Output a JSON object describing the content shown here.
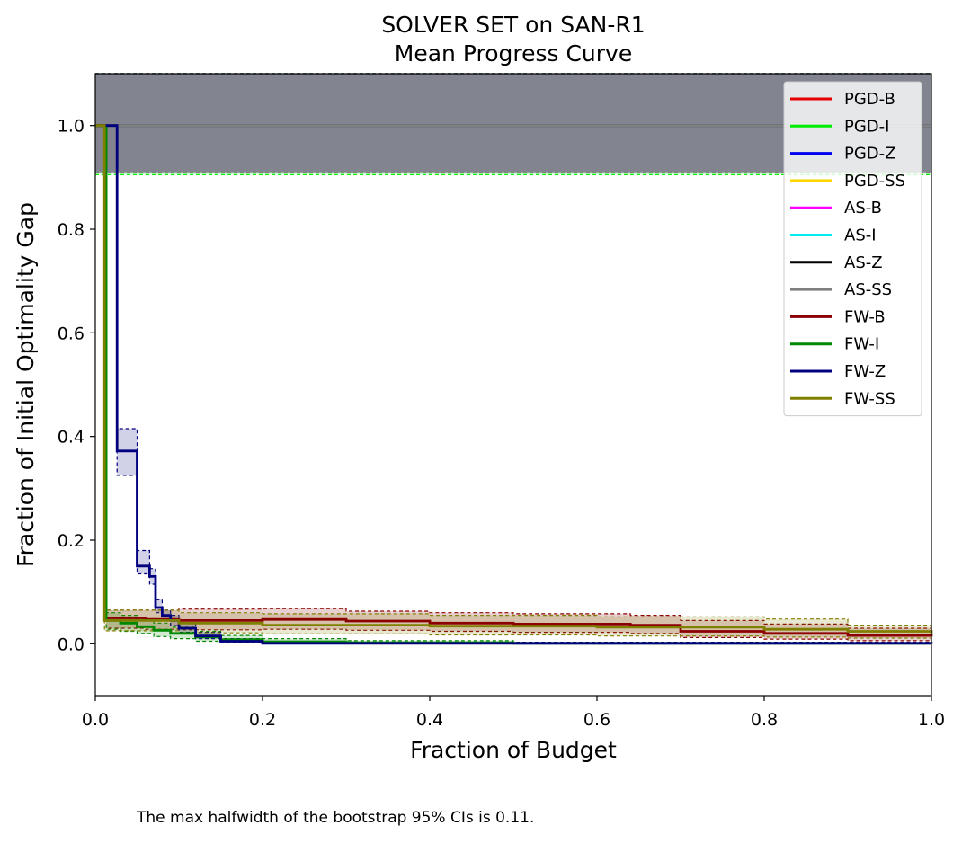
{
  "chart_data": {
    "type": "line",
    "title": "SOLVER SET on SAN-R1",
    "subtitle": "Mean Progress Curve",
    "xlabel": "Fraction of Budget",
    "ylabel": "Fraction of Initial Optimality Gap",
    "xlim": [
      0.0,
      1.0
    ],
    "ylim": [
      -0.1,
      1.1
    ],
    "xticks": [
      0.0,
      0.2,
      0.4,
      0.6,
      0.8,
      1.0
    ],
    "yticks": [
      0.0,
      0.2,
      0.4,
      0.6,
      0.8,
      1.0
    ],
    "xtick_labels": [
      "0.0",
      "0.2",
      "0.4",
      "0.6",
      "0.8",
      "1.0"
    ],
    "ytick_labels": [
      "0.0",
      "0.2",
      "0.4",
      "0.6",
      "0.8",
      "1.0"
    ],
    "grid": false,
    "legend_position": "top-right",
    "series": [
      {
        "name": "PGD-B",
        "color": "#e60000",
        "x": [
          0.0,
          1.0
        ],
        "y": [
          1.0,
          1.0
        ],
        "ci_lower": [
          0.91,
          0.91
        ],
        "ci_upper": [
          1.1,
          1.1
        ]
      },
      {
        "name": "PGD-I",
        "color": "#00ee00",
        "x": [
          0.0,
          1.0
        ],
        "y": [
          1.0,
          1.0
        ],
        "ci_lower": [
          0.905,
          0.905
        ],
        "ci_upper": [
          1.1,
          1.1
        ]
      },
      {
        "name": "PGD-Z",
        "color": "#0000ee",
        "x": [
          0.0,
          1.0
        ],
        "y": [
          1.0,
          1.0
        ],
        "ci_lower": [
          0.91,
          0.91
        ],
        "ci_upper": [
          1.1,
          1.1
        ]
      },
      {
        "name": "PGD-SS",
        "color": "#ffd700",
        "x": [
          0.0,
          1.0
        ],
        "y": [
          1.0,
          1.0
        ],
        "ci_lower": [
          0.91,
          0.91
        ],
        "ci_upper": [
          1.1,
          1.1
        ]
      },
      {
        "name": "AS-B",
        "color": "#ff00ff",
        "x": [
          0.0,
          1.0
        ],
        "y": [
          1.0,
          1.0
        ],
        "ci_lower": [
          0.91,
          0.91
        ],
        "ci_upper": [
          1.1,
          1.1
        ]
      },
      {
        "name": "AS-I",
        "color": "#00eeee",
        "x": [
          0.0,
          1.0
        ],
        "y": [
          1.0,
          1.0
        ],
        "ci_lower": [
          0.91,
          0.91
        ],
        "ci_upper": [
          1.1,
          1.1
        ]
      },
      {
        "name": "AS-Z",
        "color": "#000000",
        "x": [
          0.0,
          1.0
        ],
        "y": [
          1.0,
          1.0
        ],
        "ci_lower": [
          0.91,
          0.91
        ],
        "ci_upper": [
          1.1,
          1.1
        ]
      },
      {
        "name": "AS-SS",
        "color": "#808080",
        "x": [
          0.0,
          1.0
        ],
        "y": [
          1.0,
          1.0
        ],
        "ci_lower": [
          0.91,
          0.91
        ],
        "ci_upper": [
          1.1,
          1.1
        ]
      },
      {
        "name": "FW-B",
        "color": "#8b0000",
        "x": [
          0.0,
          0.013,
          0.03,
          0.06,
          0.1,
          0.2,
          0.3,
          0.4,
          0.5,
          0.64,
          0.7,
          0.8,
          0.9,
          1.0
        ],
        "y": [
          1.0,
          0.05,
          0.05,
          0.047,
          0.045,
          0.047,
          0.044,
          0.04,
          0.038,
          0.036,
          0.024,
          0.02,
          0.016,
          0.014
        ],
        "ci_lower": [
          1.0,
          0.03,
          0.03,
          0.028,
          0.027,
          0.028,
          0.026,
          0.024,
          0.022,
          0.02,
          0.012,
          0.009,
          0.006,
          0.005
        ],
        "ci_upper": [
          1.0,
          0.065,
          0.065,
          0.065,
          0.067,
          0.068,
          0.063,
          0.06,
          0.058,
          0.055,
          0.045,
          0.038,
          0.03,
          0.028
        ]
      },
      {
        "name": "FW-I",
        "color": "#008800",
        "x": [
          0.0,
          0.013,
          0.03,
          0.05,
          0.07,
          0.09,
          0.12,
          0.15,
          0.2,
          0.3,
          0.5,
          1.0
        ],
        "y": [
          1.0,
          0.045,
          0.04,
          0.033,
          0.026,
          0.02,
          0.013,
          0.008,
          0.004,
          0.002,
          0.001,
          0.0
        ],
        "ci_lower": [
          1.0,
          0.028,
          0.024,
          0.02,
          0.014,
          0.01,
          0.005,
          0.002,
          0.0,
          0.0,
          0.0,
          0.0
        ],
        "ci_upper": [
          1.0,
          0.06,
          0.055,
          0.047,
          0.04,
          0.032,
          0.024,
          0.016,
          0.01,
          0.006,
          0.003,
          0.002
        ]
      },
      {
        "name": "FW-Z",
        "color": "#00007f",
        "x": [
          0.0,
          0.026,
          0.05,
          0.065,
          0.072,
          0.08,
          0.09,
          0.1,
          0.12,
          0.15,
          0.2,
          1.0
        ],
        "y": [
          1.0,
          0.372,
          0.15,
          0.13,
          0.07,
          0.055,
          0.045,
          0.03,
          0.015,
          0.005,
          0.001,
          0.0
        ],
        "ci_lower": [
          1.0,
          0.325,
          0.135,
          0.115,
          0.06,
          0.045,
          0.035,
          0.022,
          0.01,
          0.002,
          0.0,
          0.0
        ],
        "ci_upper": [
          1.0,
          0.415,
          0.18,
          0.145,
          0.085,
          0.065,
          0.055,
          0.04,
          0.022,
          0.01,
          0.003,
          0.001
        ]
      },
      {
        "name": "FW-SS",
        "color": "#808000",
        "x": [
          0.0,
          0.011,
          0.03,
          0.1,
          0.2,
          0.4,
          0.6,
          0.8,
          0.9,
          1.0
        ],
        "y": [
          1.0,
          0.045,
          0.045,
          0.04,
          0.036,
          0.034,
          0.032,
          0.028,
          0.024,
          0.02
        ],
        "ci_lower": [
          1.0,
          0.025,
          0.025,
          0.021,
          0.019,
          0.017,
          0.015,
          0.013,
          0.011,
          0.009
        ],
        "ci_upper": [
          1.0,
          0.065,
          0.065,
          0.06,
          0.058,
          0.055,
          0.052,
          0.048,
          0.036,
          0.032
        ]
      }
    ]
  },
  "footnote": "The max halfwidth of the bootstrap 95% CIs is 0.11."
}
